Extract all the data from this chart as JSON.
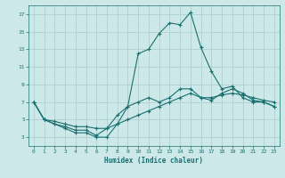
{
  "xlabel": "Humidex (Indice chaleur)",
  "ylabel": "",
  "bg_color": "#cde8e8",
  "grid_color": "#aacccc",
  "line_color": "#1a7070",
  "xlim": [
    -0.5,
    23.5
  ],
  "ylim": [
    2,
    18
  ],
  "xticks": [
    0,
    1,
    2,
    3,
    4,
    5,
    6,
    7,
    8,
    9,
    10,
    11,
    12,
    13,
    14,
    15,
    16,
    17,
    18,
    19,
    20,
    21,
    22,
    23
  ],
  "yticks": [
    3,
    5,
    7,
    9,
    11,
    13,
    15,
    17
  ],
  "series": [
    {
      "x": [
        0,
        1,
        2,
        3,
        4,
        5,
        6,
        7,
        8,
        9,
        10,
        11,
        12,
        13,
        14,
        15,
        16,
        17,
        18,
        19,
        20,
        21,
        22,
        23
      ],
      "y": [
        7,
        5,
        4.5,
        4,
        3.5,
        3.5,
        3,
        3,
        4.5,
        6.5,
        12.5,
        13,
        14.8,
        16,
        15.8,
        17.2,
        13.2,
        10.5,
        8.5,
        8.8,
        7.5,
        7,
        7,
        6.5
      ]
    },
    {
      "x": [
        0,
        1,
        2,
        3,
        4,
        5,
        6,
        7,
        8,
        9,
        10,
        11,
        12,
        13,
        14,
        15,
        16,
        17,
        18,
        19,
        20,
        21,
        22,
        23
      ],
      "y": [
        7,
        5,
        4.5,
        4.2,
        3.8,
        3.8,
        3.2,
        4,
        5.5,
        6.5,
        7,
        7.5,
        7,
        7.5,
        8.5,
        8.5,
        7.5,
        7.2,
        8,
        8.5,
        8,
        7.2,
        7,
        6.5
      ]
    },
    {
      "x": [
        0,
        1,
        2,
        3,
        4,
        5,
        6,
        7,
        8,
        9,
        10,
        11,
        12,
        13,
        14,
        15,
        16,
        17,
        18,
        19,
        20,
        21,
        22,
        23
      ],
      "y": [
        7,
        5,
        4.8,
        4.5,
        4.2,
        4.2,
        4,
        4,
        4.5,
        5,
        5.5,
        6,
        6.5,
        7,
        7.5,
        8,
        7.5,
        7.5,
        7.8,
        8,
        7.8,
        7.5,
        7.2,
        7
      ]
    }
  ]
}
